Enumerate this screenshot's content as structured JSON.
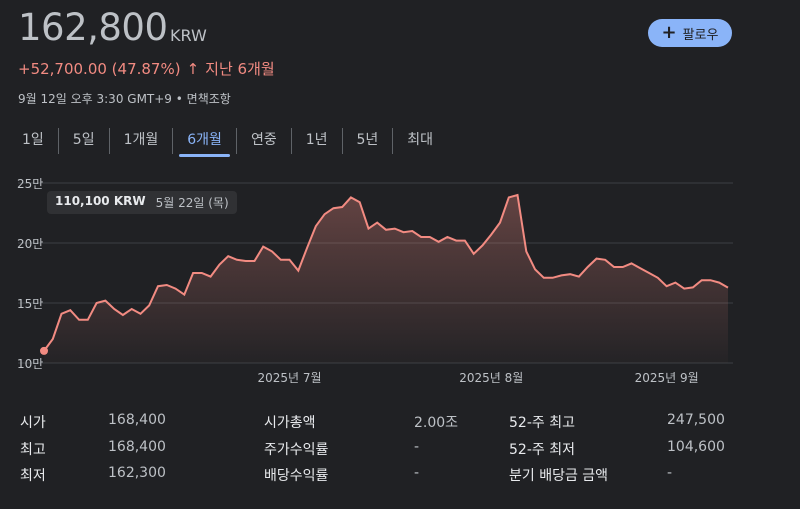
{
  "quote": {
    "price": "162,800",
    "currency": "KRW",
    "change": "+52,700.00 (47.87%)",
    "change_arrow": "↑",
    "change_period": "지난 6개월",
    "meta": "9월 12일 오후 3:30 GMT+9 • 면책조항",
    "follow_label": "팔로우"
  },
  "tabs": [
    {
      "label": "1일"
    },
    {
      "label": "5일"
    },
    {
      "label": "1개월"
    },
    {
      "label": "6개월",
      "active": true
    },
    {
      "label": "연중"
    },
    {
      "label": "1년"
    },
    {
      "label": "5년"
    },
    {
      "label": "최대"
    }
  ],
  "tooltip": {
    "value": "110,100 KRW",
    "date": "5월 22일 (목)"
  },
  "chart_data": {
    "type": "area",
    "yticks": [
      "25만",
      "20만",
      "15만",
      "10만"
    ],
    "ytick_values": [
      250000,
      200000,
      150000,
      100000
    ],
    "ylim": [
      100000,
      250000
    ],
    "xticks": [
      "2025년 7월",
      "2025년 8월",
      "2025년 9월"
    ],
    "xtick_index": [
      28,
      51,
      71
    ],
    "line_color": "#f28b82",
    "values": [
      110100,
      120000,
      141000,
      144000,
      136000,
      136000,
      150000,
      152000,
      145000,
      140000,
      145000,
      141000,
      148000,
      164000,
      165000,
      162000,
      157000,
      175000,
      175000,
      172000,
      182000,
      189000,
      186000,
      185000,
      185000,
      197000,
      193000,
      186000,
      186000,
      177000,
      196000,
      214000,
      224000,
      229000,
      230000,
      238000,
      234000,
      212000,
      217000,
      211000,
      212000,
      209000,
      210000,
      205000,
      205000,
      201000,
      205000,
      202000,
      202000,
      191000,
      198000,
      207000,
      217000,
      238000,
      240000,
      193000,
      178000,
      171000,
      171000,
      173000,
      174000,
      172000,
      180000,
      187000,
      186000,
      180000,
      180000,
      183000,
      179000,
      175000,
      171000,
      164000,
      167000,
      162000,
      163000,
      169000,
      169000,
      167000,
      162800
    ]
  },
  "stats": [
    {
      "label": "시가",
      "value": "168,400"
    },
    {
      "label": "최고",
      "value": "168,400"
    },
    {
      "label": "최저",
      "value": "162,300"
    },
    {
      "label": "시가총액",
      "value": "2.00조"
    },
    {
      "label": "주가수익률",
      "value": "-"
    },
    {
      "label": "배당수익률",
      "value": "-"
    },
    {
      "label": "52-주 최고",
      "value": "247,500"
    },
    {
      "label": "52-주 최저",
      "value": "104,600"
    },
    {
      "label": "분기 배당금 금액",
      "value": "-"
    }
  ]
}
